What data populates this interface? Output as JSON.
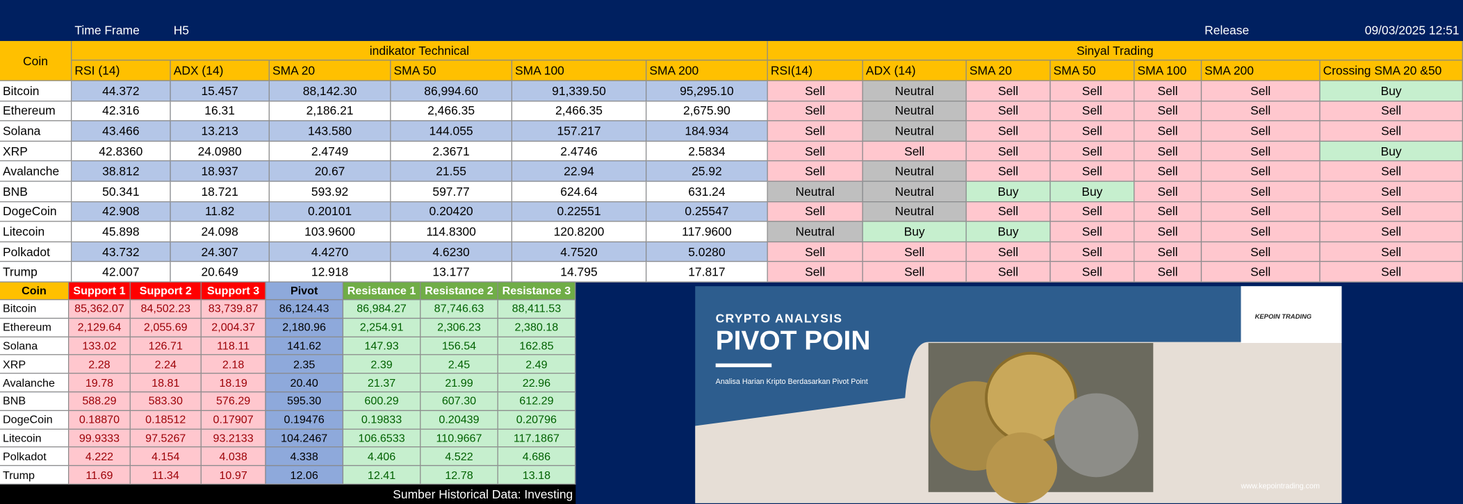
{
  "header": {
    "time_frame_label": "Time Frame",
    "time_frame": "H5",
    "release_label": "Release",
    "release": "09/03/2025 12:51"
  },
  "signal_colors": {
    "Sell": "#ffc7ce",
    "Buy": "#c6efce",
    "Neutral": "#bfbfbf"
  },
  "table": {
    "coin_header": "Coin",
    "group_headers": [
      "indikator Technical",
      "Sinyal Trading"
    ],
    "columns": [
      "RSI (14)",
      "ADX (14)",
      "SMA 20",
      "SMA 50",
      "SMA 100",
      "SMA 200",
      "RSI(14)",
      "ADX (14)",
      "SMA 20",
      "SMA 50",
      "SMA 100",
      "SMA 200",
      "Crossing SMA 20 &50"
    ],
    "rows": [
      [
        "Bitcoin",
        "44.372",
        "15.457",
        "88,142.30",
        "86,994.60",
        "91,339.50",
        "95,295.10",
        "Sell",
        "Neutral",
        "Sell",
        "Sell",
        "Sell",
        "Sell",
        "Buy"
      ],
      [
        "Ethereum",
        "42.316",
        "16.31",
        "2,186.21",
        "2,466.35",
        "2,466.35",
        "2,675.90",
        "Sell",
        "Neutral",
        "Sell",
        "Sell",
        "Sell",
        "Sell",
        "Sell"
      ],
      [
        "Solana",
        "43.466",
        "13.213",
        "143.580",
        "144.055",
        "157.217",
        "184.934",
        "Sell",
        "Neutral",
        "Sell",
        "Sell",
        "Sell",
        "Sell",
        "Sell"
      ],
      [
        "XRP",
        "42.8360",
        "24.0980",
        "2.4749",
        "2.3671",
        "2.4746",
        "2.5834",
        "Sell",
        "Sell",
        "Sell",
        "Sell",
        "Sell",
        "Sell",
        "Buy"
      ],
      [
        "Avalanche",
        "38.812",
        "18.937",
        "20.67",
        "21.55",
        "22.94",
        "25.92",
        "Sell",
        "Neutral",
        "Sell",
        "Sell",
        "Sell",
        "Sell",
        "Sell"
      ],
      [
        "BNB",
        "50.341",
        "18.721",
        "593.92",
        "597.77",
        "624.64",
        "631.24",
        "Neutral",
        "Neutral",
        "Buy",
        "Buy",
        "Sell",
        "Sell",
        "Sell"
      ],
      [
        "DogeCoin",
        "42.908",
        "11.82",
        "0.20101",
        "0.20420",
        "0.22551",
        "0.25547",
        "Sell",
        "Neutral",
        "Sell",
        "Sell",
        "Sell",
        "Sell",
        "Sell"
      ],
      [
        "Litecoin",
        "45.898",
        "24.098",
        "103.9600",
        "114.8300",
        "120.8200",
        "117.9600",
        "Neutral",
        "Buy",
        "Buy",
        "Sell",
        "Sell",
        "Sell",
        "Sell"
      ],
      [
        "Polkadot",
        "43.732",
        "24.307",
        "4.4270",
        "4.6230",
        "4.7520",
        "5.0280",
        "Sell",
        "Sell",
        "Sell",
        "Sell",
        "Sell",
        "Sell",
        "Sell"
      ],
      [
        "Trump",
        "42.007",
        "20.649",
        "12.918",
        "13.177",
        "14.795",
        "17.817",
        "Sell",
        "Sell",
        "Sell",
        "Sell",
        "Sell",
        "Sell",
        "Sell"
      ]
    ]
  },
  "pivot": {
    "columns": [
      "Coin",
      "Support 1",
      "Support 2",
      "Support 3",
      "Pivot",
      "Resistance 1",
      "Resistance 2",
      "Resistance 3"
    ],
    "rows": [
      [
        "Bitcoin",
        "85,362.07",
        "84,502.23",
        "83,739.87",
        "86,124.43",
        "86,984.27",
        "87,746.63",
        "88,411.53"
      ],
      [
        "Ethereum",
        "2,129.64",
        "2,055.69",
        "2,004.37",
        "2,180.96",
        "2,254.91",
        "2,306.23",
        "2,380.18"
      ],
      [
        "Solana",
        "133.02",
        "126.71",
        "118.11",
        "141.62",
        "147.93",
        "156.54",
        "162.85"
      ],
      [
        "XRP",
        "2.28",
        "2.24",
        "2.18",
        "2.35",
        "2.39",
        "2.45",
        "2.49"
      ],
      [
        "Avalanche",
        "19.78",
        "18.81",
        "18.19",
        "20.40",
        "21.37",
        "21.99",
        "22.96"
      ],
      [
        "BNB",
        "588.29",
        "583.30",
        "576.29",
        "595.30",
        "600.29",
        "607.30",
        "612.29"
      ],
      [
        "DogeCoin",
        "0.18870",
        "0.18512",
        "0.17907",
        "0.19476",
        "0.19833",
        "0.20439",
        "0.20796"
      ],
      [
        "Litecoin",
        "99.9333",
        "97.5267",
        "93.2133",
        "104.2467",
        "106.6533",
        "110.9667",
        "117.1867"
      ],
      [
        "Polkadot",
        "4.222",
        "4.154",
        "4.038",
        "4.338",
        "4.406",
        "4.522",
        "4.686"
      ],
      [
        "Trump",
        "11.69",
        "11.34",
        "10.97",
        "12.06",
        "12.41",
        "12.78",
        "13.18"
      ]
    ],
    "source": "Sumber Historical Data: Investing"
  },
  "banner": {
    "title": "CRYPTO ANALYSIS",
    "heading": "PIVOT POIN",
    "subtitle": "Analisa Harian Kripto Berdasarkan Pivot Point",
    "logo": "KEPOIN TRADING",
    "url": "www.kepointrading.com"
  }
}
